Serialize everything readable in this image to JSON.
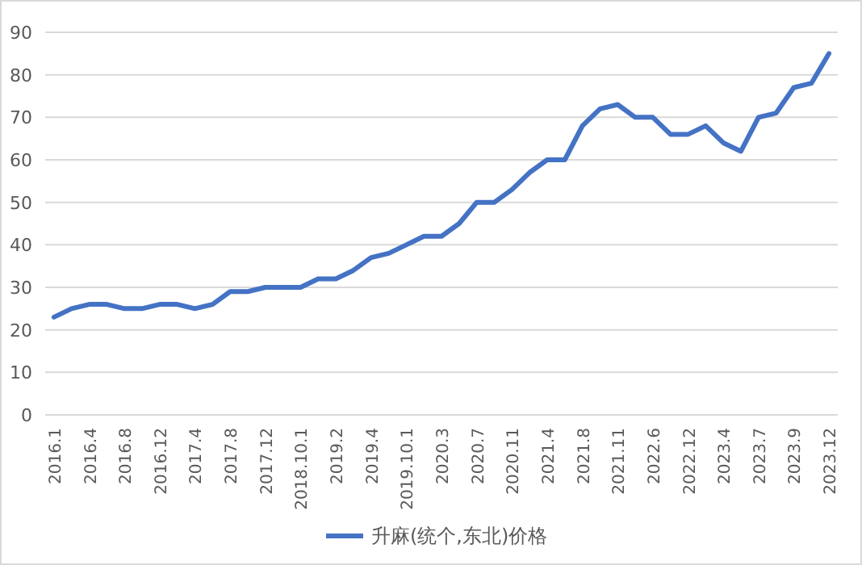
{
  "chart_data": {
    "type": "line",
    "categories": [
      "2016.1",
      null,
      "2016.4",
      null,
      "2016.8",
      null,
      "2016.12",
      null,
      "2017.4",
      null,
      "2017.8",
      null,
      "2017.12",
      null,
      "2018.10.1",
      null,
      "2019.2",
      null,
      "2019.4",
      null,
      "2019.10.1",
      null,
      "2020.3",
      null,
      "2020.7",
      null,
      "2020.11",
      null,
      "2021.4",
      null,
      "2021.8",
      null,
      "2021.11",
      null,
      "2022.6",
      null,
      "2022.12",
      null,
      "2023.4",
      null,
      "2023.7",
      null,
      "2023.9",
      null,
      "2023.12"
    ],
    "series": [
      {
        "name": "升麻(统个,东北)价格",
        "color": "#4472c4",
        "values": [
          23,
          25,
          26,
          26,
          25,
          25,
          26,
          26,
          25,
          26,
          29,
          29,
          30,
          30,
          30,
          32,
          32,
          34,
          37,
          38,
          40,
          42,
          42,
          45,
          50,
          50,
          53,
          57,
          60,
          60,
          68,
          72,
          73,
          70,
          70,
          66,
          66,
          68,
          64,
          62,
          70,
          71,
          77,
          78,
          85
        ]
      }
    ],
    "ylim": [
      0,
      90
    ],
    "yticks": [
      0,
      10,
      20,
      30,
      40,
      50,
      60,
      70,
      80,
      90
    ],
    "grid": "y",
    "legend": "bottom"
  }
}
